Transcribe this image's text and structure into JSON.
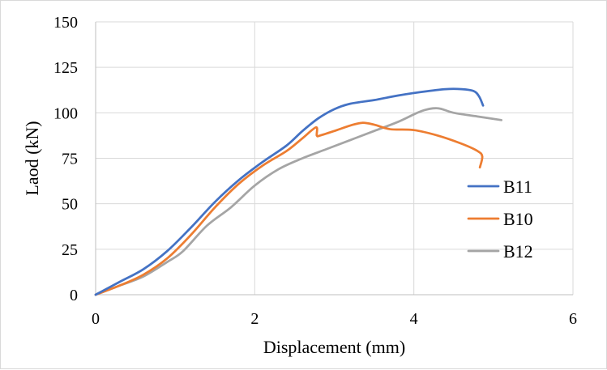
{
  "chart_data": {
    "type": "line",
    "title": "",
    "xlabel": "Displacement (mm)",
    "ylabel": "Laod (kN)",
    "xlim": [
      0,
      6
    ],
    "ylim": [
      0,
      150
    ],
    "x_ticks": [
      0,
      2,
      4,
      6
    ],
    "y_ticks": [
      0,
      25,
      50,
      75,
      100,
      125,
      150
    ],
    "x_tick_labels": [
      "0",
      "2",
      "4",
      "6"
    ],
    "y_tick_labels": [
      "0",
      "25",
      "50",
      "75",
      "100",
      "125",
      "150"
    ],
    "grid": true,
    "legend_position": "right",
    "series": [
      {
        "name": "B11",
        "color": "#4472c4",
        "x": [
          0,
          0.3,
          0.6,
          0.9,
          1.2,
          1.5,
          1.8,
          2.1,
          2.4,
          2.6,
          2.8,
          3.0,
          3.2,
          3.5,
          3.8,
          4.1,
          4.4,
          4.6,
          4.75,
          4.82,
          4.87
        ],
        "y": [
          0,
          7,
          14,
          24,
          37,
          51,
          63,
          73,
          82,
          90,
          97,
          102,
          105,
          107,
          109.5,
          111.5,
          113,
          113,
          112,
          109,
          104
        ]
      },
      {
        "name": "B10",
        "color": "#ed7d31",
        "x": [
          0,
          0.3,
          0.6,
          0.9,
          1.2,
          1.5,
          1.8,
          2.1,
          2.4,
          2.6,
          2.77,
          2.78,
          2.82,
          3.0,
          3.2,
          3.35,
          3.5,
          3.7,
          4.0,
          4.3,
          4.6,
          4.8,
          4.86,
          4.83
        ],
        "y": [
          0,
          5,
          11,
          20,
          33,
          48,
          61,
          71,
          79,
          86,
          92,
          87.5,
          87.5,
          90,
          93,
          94.5,
          93.5,
          91,
          90.5,
          87.5,
          83,
          79,
          76,
          70
        ]
      },
      {
        "name": "B12",
        "color": "#a5a5a5",
        "x": [
          0,
          0.3,
          0.6,
          0.9,
          1.1,
          1.4,
          1.7,
          2.0,
          2.3,
          2.6,
          2.9,
          3.2,
          3.5,
          3.8,
          4.1,
          4.3,
          4.5,
          4.8,
          5.1
        ],
        "y": [
          0,
          5,
          10,
          18,
          24,
          38,
          48,
          60,
          69,
          75,
          80,
          85,
          90,
          95,
          101,
          102.5,
          100,
          98,
          96
        ]
      }
    ]
  }
}
